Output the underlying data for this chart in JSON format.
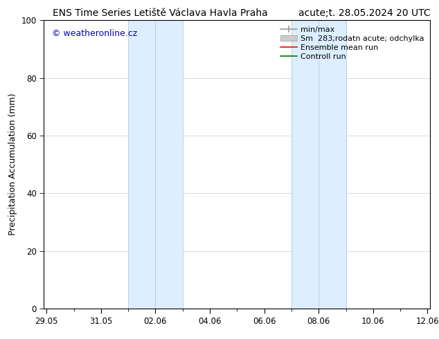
{
  "title_left": "ENS Time Series Letiště Václava Havla Praha",
  "title_right": "acute;t. 28.05.2024 20 UTC",
  "ylabel": "Precipitation Accumulation (mm)",
  "watermark": "© weatheronline.cz",
  "watermark_color": "#0000cc",
  "ylim": [
    0,
    100
  ],
  "yticks": [
    0,
    20,
    40,
    60,
    80,
    100
  ],
  "xtick_labels": [
    "29.05",
    "31.05",
    "02.06",
    "04.06",
    "06.06",
    "08.06",
    "10.06",
    "12.06"
  ],
  "xtick_positions_days": [
    0,
    2,
    4,
    6,
    8,
    10,
    12,
    14
  ],
  "start_date": "2024-05-29",
  "shaded_regions": [
    {
      "start_days": 3.0,
      "end_days": 5.0,
      "color": "#ddeeff"
    },
    {
      "start_days": 9.0,
      "end_days": 11.0,
      "color": "#ddeeff"
    }
  ],
  "vertical_lines_days": [
    3.0,
    4.0,
    5.0,
    9.0,
    10.0,
    11.0
  ],
  "vertical_line_color": "#b8d4ee",
  "background_color": "#ffffff",
  "plot_bg_color": "#ffffff",
  "legend_label_minmax": "min/max",
  "legend_label_sm": "Sm  283;rodatn acute; odchylka",
  "legend_label_ensemble": "Ensemble mean run",
  "legend_label_control": "Controll run",
  "legend_color_minmax": "#999999",
  "legend_color_sm": "#cccccc",
  "legend_color_ensemble": "#ff0000",
  "legend_color_control": "#007700",
  "font_family": "DejaVu Sans",
  "title_fontsize": 10,
  "axis_label_fontsize": 9,
  "tick_fontsize": 8.5,
  "legend_fontsize": 8,
  "watermark_fontsize": 9
}
